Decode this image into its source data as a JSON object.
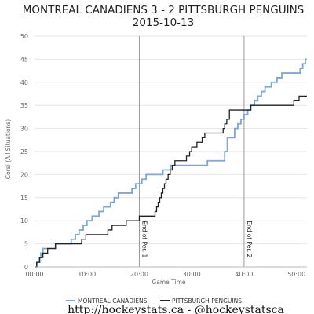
{
  "title_line1": "MONTREAL CANADIENS 3 - 2 PITTSBURGH PENGUINS",
  "title_line2": "2015-10-13",
  "footer": "http://hockeystats.ca - @hockeystatsca",
  "colors": {
    "montreal": "#7ba7d9",
    "pittsburgh": "#222222",
    "period_line": "#999999"
  },
  "chart_data": {
    "type": "line",
    "xlabel": "Game Time",
    "ylabel": "Corsi (All Situations)",
    "xlim": [
      0,
      52
    ],
    "ylim": [
      0,
      50
    ],
    "x_ticks": [
      0,
      10,
      20,
      30,
      40,
      50
    ],
    "x_tick_labels": [
      "00:00",
      "10:00",
      "20:00",
      "30:00",
      "40:00",
      "50:00"
    ],
    "y_ticks": [
      0,
      5,
      10,
      15,
      20,
      25,
      30,
      35,
      40,
      45,
      50
    ],
    "grid": "horizontal",
    "legend": "bottom",
    "annotations": [
      {
        "x": 20,
        "label": "End of Per. 1"
      },
      {
        "x": 40,
        "label": "End of Per. 2"
      }
    ],
    "series": [
      {
        "name": "MONTREAL CANADIENS",
        "step": true,
        "points": [
          [
            0,
            0
          ],
          [
            0.6,
            1
          ],
          [
            0.9,
            2
          ],
          [
            1.2,
            3
          ],
          [
            1.6,
            4
          ],
          [
            3.5,
            4
          ],
          [
            4.0,
            5
          ],
          [
            6.5,
            5
          ],
          [
            7.0,
            6
          ],
          [
            7.8,
            7
          ],
          [
            8.5,
            8
          ],
          [
            9.3,
            9
          ],
          [
            10.0,
            10
          ],
          [
            11.0,
            11
          ],
          [
            12.3,
            12
          ],
          [
            13.2,
            13
          ],
          [
            14.5,
            14
          ],
          [
            15.2,
            15
          ],
          [
            16.0,
            16
          ],
          [
            18.2,
            16
          ],
          [
            18.6,
            17
          ],
          [
            19.3,
            18
          ],
          [
            20.5,
            19
          ],
          [
            21.3,
            20
          ],
          [
            24.0,
            20
          ],
          [
            24.5,
            21
          ],
          [
            25.5,
            21
          ],
          [
            26.0,
            22
          ],
          [
            29.0,
            22
          ],
          [
            29.5,
            22
          ],
          [
            32.0,
            22
          ],
          [
            33.0,
            23
          ],
          [
            35.8,
            23
          ],
          [
            36.3,
            25
          ],
          [
            36.8,
            28
          ],
          [
            37.8,
            28
          ],
          [
            38.2,
            30
          ],
          [
            38.8,
            31
          ],
          [
            39.4,
            32
          ],
          [
            40.0,
            33
          ],
          [
            40.7,
            34
          ],
          [
            41.2,
            35
          ],
          [
            42.0,
            36
          ],
          [
            42.6,
            37
          ],
          [
            43.3,
            38
          ],
          [
            44.0,
            39
          ],
          [
            45.2,
            40
          ],
          [
            46.3,
            41
          ],
          [
            47.2,
            42
          ],
          [
            50.2,
            42
          ],
          [
            50.7,
            43
          ],
          [
            51.2,
            44
          ],
          [
            51.7,
            45
          ],
          [
            52.0,
            45
          ]
        ]
      },
      {
        "name": "PITTSBURGH PENGUINS",
        "step": true,
        "points": [
          [
            0,
            0
          ],
          [
            0.4,
            1
          ],
          [
            1.0,
            2
          ],
          [
            1.6,
            3
          ],
          [
            2.5,
            4
          ],
          [
            4.0,
            5
          ],
          [
            8.5,
            5
          ],
          [
            9.0,
            6
          ],
          [
            9.8,
            7
          ],
          [
            13.5,
            7
          ],
          [
            14.0,
            8
          ],
          [
            14.8,
            9
          ],
          [
            17.0,
            9
          ],
          [
            17.5,
            10
          ],
          [
            19.0,
            10
          ],
          [
            20.0,
            11
          ],
          [
            22.5,
            11
          ],
          [
            23.0,
            12
          ],
          [
            23.3,
            13
          ],
          [
            23.6,
            14
          ],
          [
            23.9,
            15
          ],
          [
            24.2,
            16
          ],
          [
            24.5,
            17
          ],
          [
            24.8,
            18
          ],
          [
            25.1,
            19
          ],
          [
            25.5,
            20
          ],
          [
            25.9,
            21
          ],
          [
            26.3,
            22
          ],
          [
            26.8,
            23
          ],
          [
            28.5,
            23
          ],
          [
            29.0,
            24
          ],
          [
            29.6,
            25
          ],
          [
            30.0,
            26
          ],
          [
            31.0,
            27
          ],
          [
            32.0,
            28
          ],
          [
            32.5,
            29
          ],
          [
            35.7,
            29
          ],
          [
            36.0,
            30
          ],
          [
            36.3,
            31
          ],
          [
            36.7,
            32
          ],
          [
            37.2,
            34
          ],
          [
            41.0,
            34
          ],
          [
            41.3,
            35
          ],
          [
            49.0,
            35
          ],
          [
            49.5,
            36
          ],
          [
            50.5,
            37
          ],
          [
            52.0,
            37
          ]
        ]
      }
    ]
  }
}
